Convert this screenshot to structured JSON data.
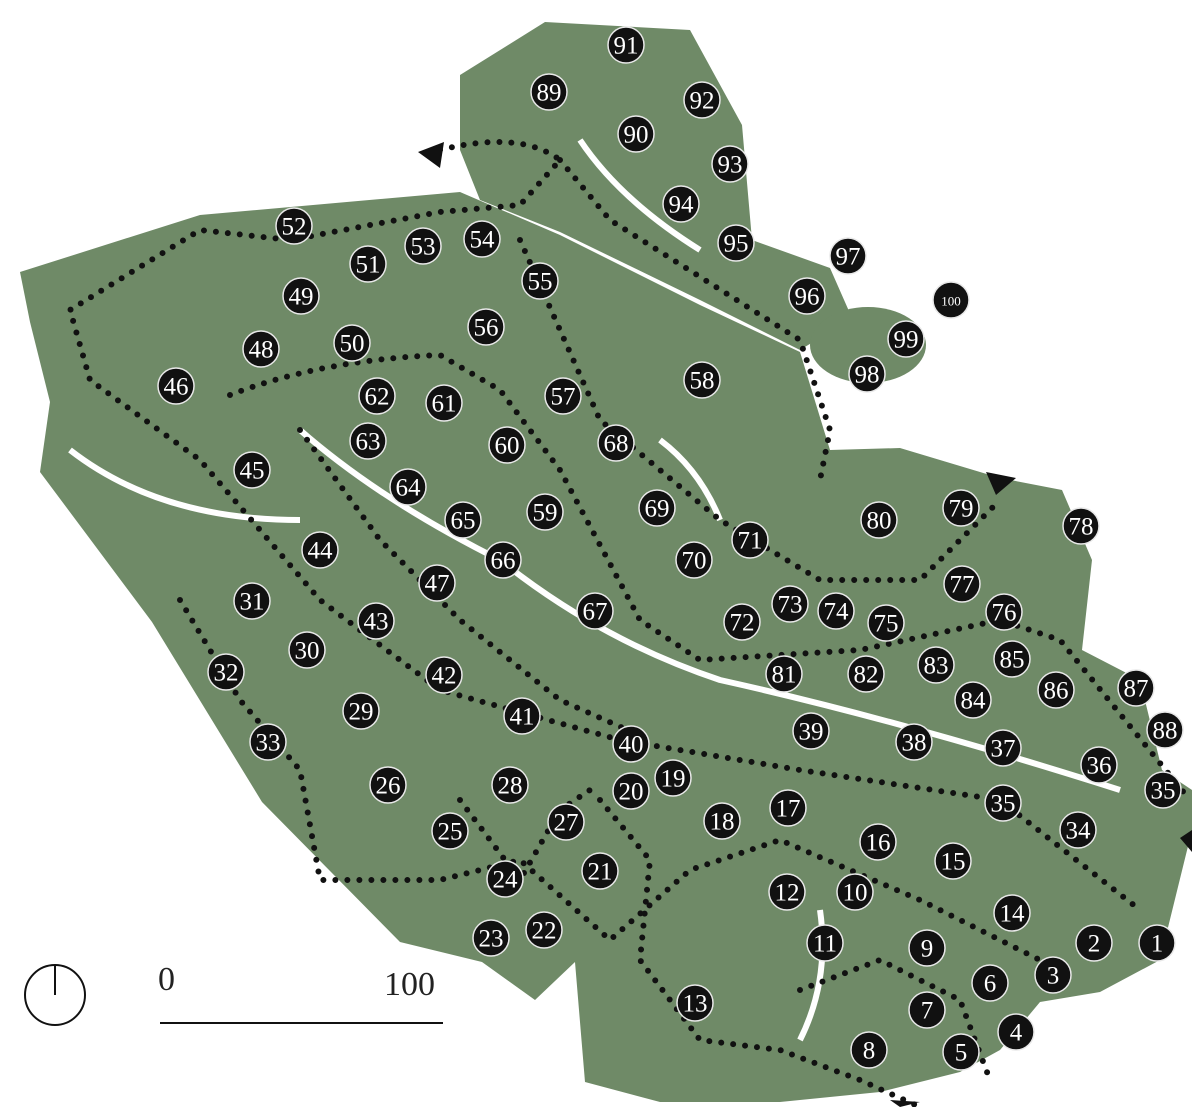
{
  "markers": [
    "1",
    "2",
    "3",
    "4",
    "5",
    "6",
    "7",
    "8",
    "9",
    "10",
    "11",
    "12",
    "13",
    "14",
    "15",
    "16",
    "17",
    "18",
    "19",
    "20",
    "21",
    "22",
    "23",
    "24",
    "25",
    "26",
    "27",
    "28",
    "29",
    "30",
    "31",
    "32",
    "33",
    "34",
    "35",
    "35",
    "36",
    "37",
    "38",
    "39",
    "40",
    "41",
    "42",
    "43",
    "44",
    "45",
    "46",
    "47",
    "48",
    "49",
    "50",
    "51",
    "52",
    "53",
    "54",
    "55",
    "56",
    "57",
    "58",
    "59",
    "60",
    "61",
    "62",
    "63",
    "64",
    "65",
    "66",
    "67",
    "68",
    "69",
    "70",
    "71",
    "72",
    "73",
    "74",
    "75",
    "76",
    "77",
    "78",
    "79",
    "80",
    "81",
    "82",
    "83",
    "84",
    "85",
    "86",
    "87",
    "88",
    "89",
    "90",
    "91",
    "92",
    "93",
    "94",
    "95",
    "96",
    "97",
    "98",
    "99",
    "100"
  ],
  "scale_bar": {
    "start": "0",
    "end": "100"
  }
}
